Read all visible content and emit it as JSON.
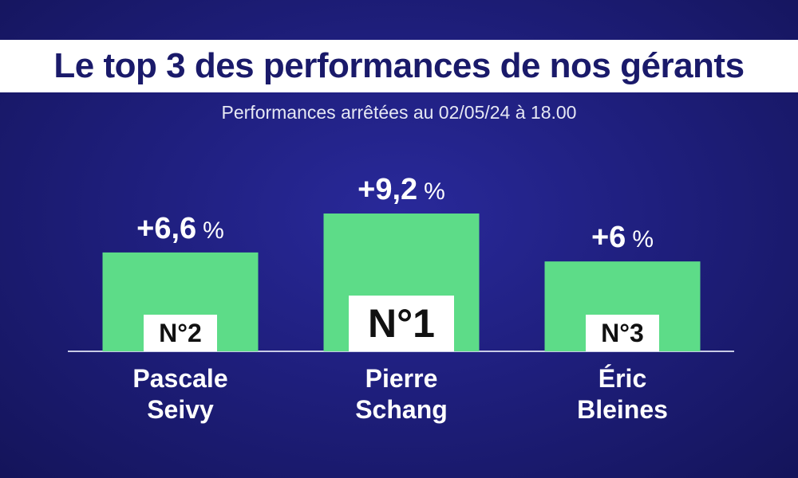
{
  "header": {
    "title": "Le top 3 des performances de nos gérants",
    "subtitle": "Performances arrêtées au 02/05/24 à 18.00"
  },
  "colors": {
    "background": "#1f1f7e",
    "bar": "#5ddc88",
    "title_text": "#1a1a6a",
    "label_text": "#ffffff"
  },
  "chart_data": {
    "type": "bar",
    "title": "Le top 3 des performances de nos gérants",
    "subtitle": "Performances arrêtées au 02/05/24 à 18.00",
    "categories": [
      "Pascale Seivy",
      "Pierre Schang",
      "Éric Bleines"
    ],
    "name_lines": [
      [
        "Pascale",
        "Seivy"
      ],
      [
        "Pierre",
        "Schang"
      ],
      [
        "Éric",
        "Bleines"
      ]
    ],
    "values": [
      6.6,
      9.2,
      6
    ],
    "value_labels": [
      "+6,6",
      "+9,2",
      "+6"
    ],
    "unit": "%",
    "ranks": [
      "N°2",
      "N°1",
      "N°3"
    ],
    "ylim": [
      0,
      9.2
    ],
    "grid": false,
    "legend": "none"
  }
}
